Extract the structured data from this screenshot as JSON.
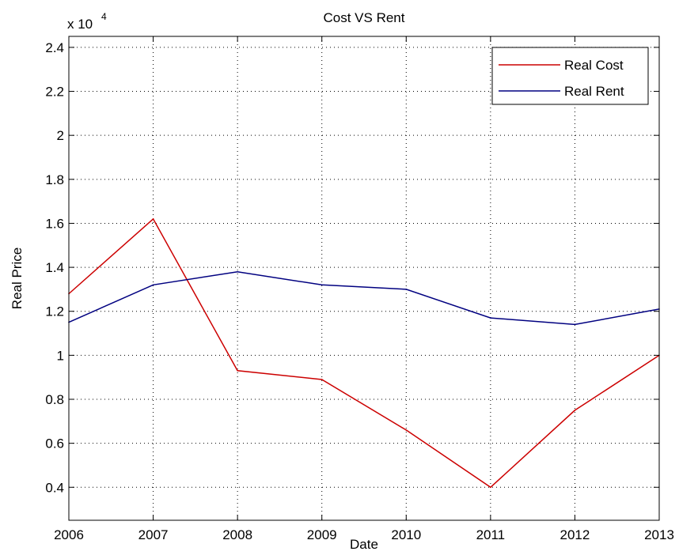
{
  "chart_data": {
    "type": "line",
    "title": "Cost VS Rent",
    "xlabel": "Date",
    "ylabel": "Real Price",
    "y_exponent_label": "x 10",
    "y_exponent": "4",
    "x": [
      2006,
      2007,
      2008,
      2009,
      2010,
      2011,
      2012,
      2013
    ],
    "xlim": [
      2006,
      2013
    ],
    "ylim": [
      0.25,
      2.45
    ],
    "x_ticks": [
      "2006",
      "2007",
      "2008",
      "2009",
      "2010",
      "2011",
      "2012",
      "2013"
    ],
    "y_tick_values": [
      0.4,
      0.6,
      0.8,
      1.0,
      1.2,
      1.4,
      1.6,
      1.8,
      2.0,
      2.2,
      2.4
    ],
    "y_ticks": [
      "0.4",
      "0.6",
      "0.8",
      "1",
      "1.2",
      "1.4",
      "1.6",
      "1.8",
      "2",
      "2.2",
      "2.4"
    ],
    "grid": true,
    "legend_position": "top-right",
    "series": [
      {
        "name": "Real Cost",
        "color": "#cc0000",
        "values": [
          1.28,
          1.62,
          0.93,
          0.89,
          0.66,
          0.4,
          0.75,
          1.0
        ]
      },
      {
        "name": "Real Rent",
        "color": "#000080",
        "values": [
          1.15,
          1.32,
          1.38,
          1.32,
          1.3,
          1.17,
          1.14,
          1.21
        ]
      }
    ]
  }
}
